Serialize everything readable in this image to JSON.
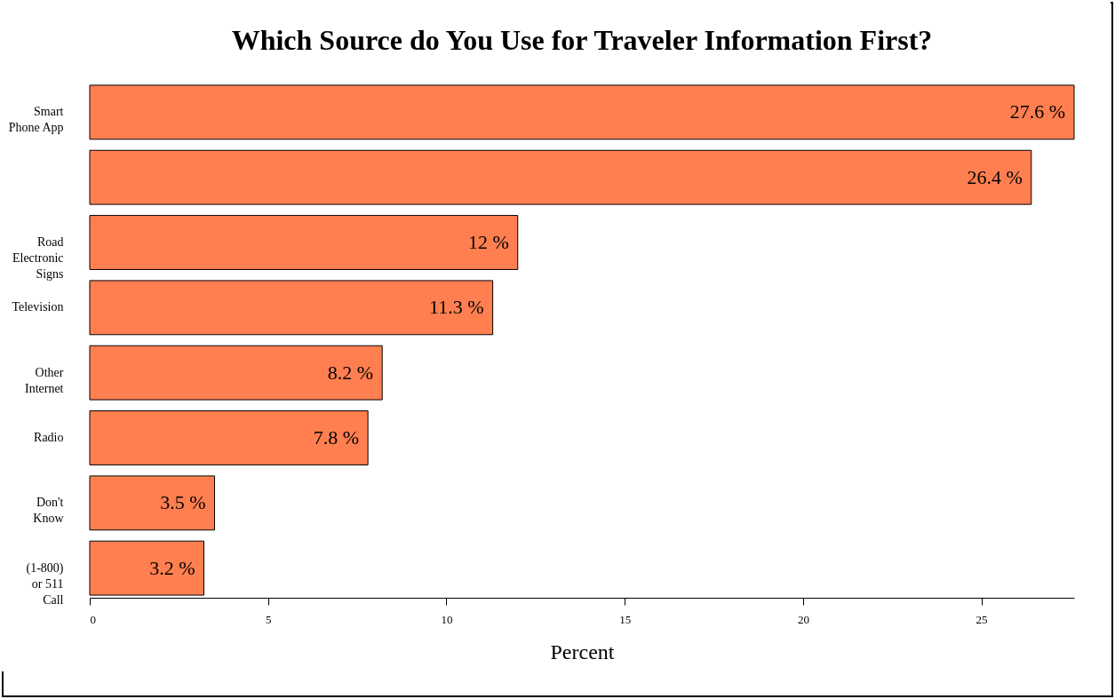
{
  "chart_data": {
    "type": "bar",
    "orientation": "horizontal",
    "title": "Which Source do You Use for Traveler Information First?",
    "xlabel": "Percent",
    "categories": [
      "Smart Phone App",
      null,
      "Road Electronic Signs",
      "Television",
      "Other Internet",
      "Radio",
      "Don't Know",
      "(1-800) or 511 Call"
    ],
    "values": [
      27.6,
      26.4,
      12,
      11.3,
      8.2,
      7.8,
      3.5,
      3.2
    ],
    "value_labels": [
      "27.6 %",
      "26.4 %",
      "12 %",
      "11.3 %",
      "8.2 %",
      "7.8 %",
      "3.5 %",
      "3.2 %"
    ],
    "color": "#ff7f50",
    "xlim": [
      0,
      27.6
    ],
    "xticks": [
      0,
      5,
      10,
      15,
      20,
      25
    ]
  }
}
